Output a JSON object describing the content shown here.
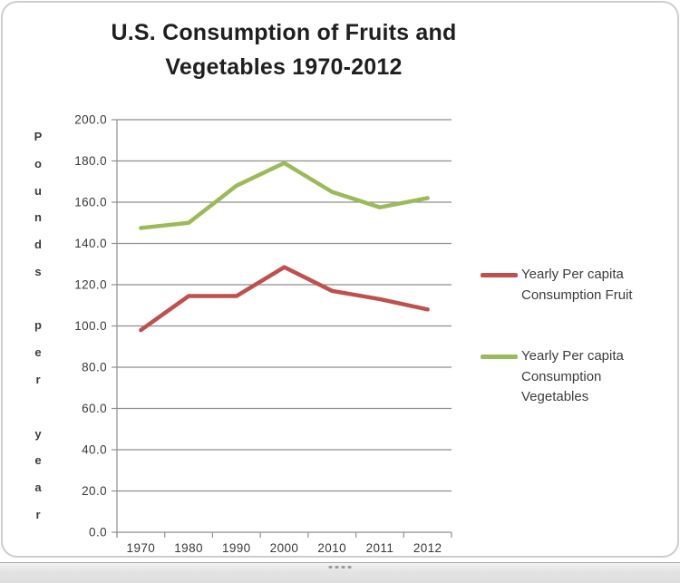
{
  "chart_data": {
    "type": "line",
    "title": "U.S. Consumption of Fruits and Vegetables 1970-2012",
    "title_lines": [
      "U.S. Consumption of Fruits and",
      "Vegetables 1970-2012"
    ],
    "ylabel": "Pounds per year",
    "xlabel": "",
    "categories": [
      "1970",
      "1980",
      "1990",
      "2000",
      "2010",
      "2011",
      "2012"
    ],
    "series": [
      {
        "name": "Yearly Per capita Consumption Fruit",
        "legend_lines": [
          "Yearly Per capita",
          "Consumption Fruit"
        ],
        "color": "#C0504D",
        "values": [
          98,
          114.5,
          114.5,
          128.5,
          117,
          113,
          108
        ]
      },
      {
        "name": "Yearly Per capita Consumption Vegetables",
        "legend_lines": [
          "Yearly Per capita",
          "Consumption",
          "Vegetables"
        ],
        "color": "#9BBB59",
        "values": [
          147.5,
          150,
          168,
          179,
          165,
          157.5,
          162
        ]
      }
    ],
    "ylim": [
      0,
      200
    ],
    "y_tick_step": 20,
    "y_tick_labels": [
      "0.0",
      "20.0",
      "40.0",
      "60.0",
      "80.0",
      "100.0",
      "120.0",
      "140.0",
      "160.0",
      "180.0",
      "200.0"
    ],
    "grid": true,
    "legend_position": "right",
    "colors": {
      "gridline": "#8f8f8f",
      "axis": "#8f8f8f",
      "tick_text": "#3a3a3a",
      "title_text": "#1f1f1f",
      "legend_text": "#3d3d3d"
    }
  },
  "icons": {
    "resize-grip": "four-dots"
  }
}
